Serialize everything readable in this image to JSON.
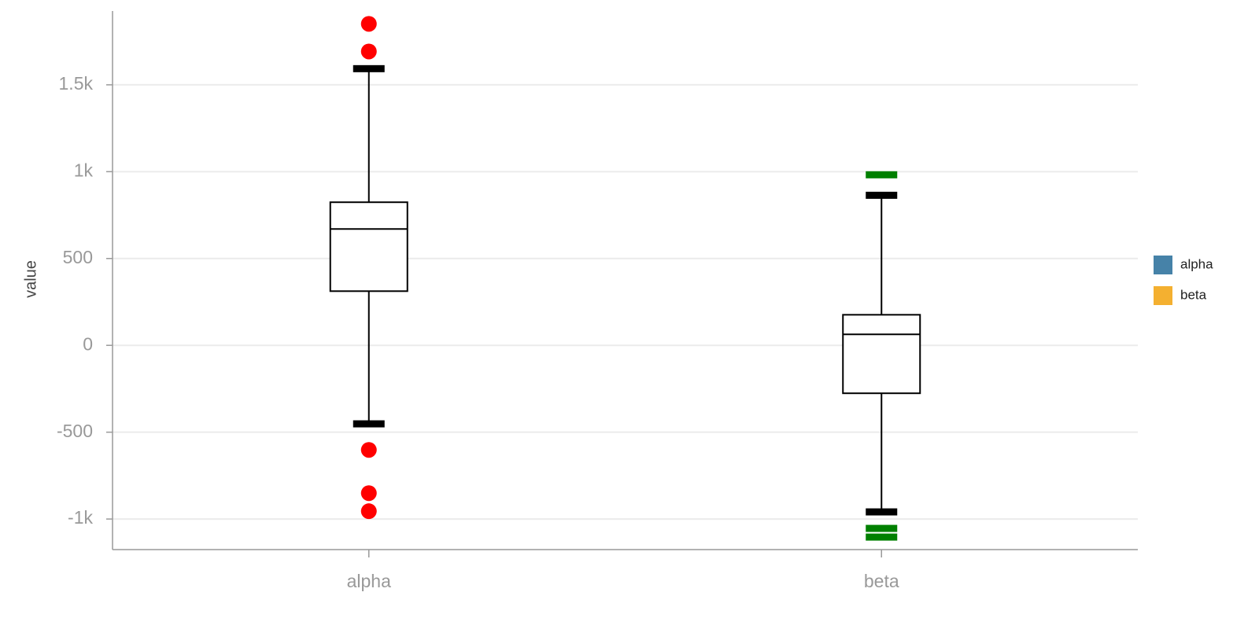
{
  "chart_data": {
    "type": "box",
    "y_label": "value",
    "ylim": [
      -1176,
      1925
    ],
    "yticks": [
      {
        "value": -1000,
        "label": "-1k"
      },
      -500,
      0,
      500,
      {
        "value": 1000,
        "label": "1k"
      },
      {
        "value": 1500,
        "label": "1.5k"
      }
    ],
    "grid": true,
    "legend": "right",
    "series": [
      {
        "name": "alpha",
        "color": "#4682a8",
        "whisker_low": -452,
        "q1": 312,
        "median": 670,
        "q3": 824,
        "whisker_high": 1593,
        "outliers": [
          1851,
          1692,
          -602,
          -851,
          -955
        ],
        "outlier_color": "#ff0000",
        "outlier_shape": "circle"
      },
      {
        "name": "beta",
        "color": "#f4b030",
        "whisker_low": -959,
        "q1": -276,
        "median": 63,
        "q3": 176,
        "whisker_high": 864,
        "outliers": [
          982,
          -1054,
          -1104
        ],
        "outlier_color": "#008000",
        "outlier_shape": "dash"
      }
    ]
  }
}
